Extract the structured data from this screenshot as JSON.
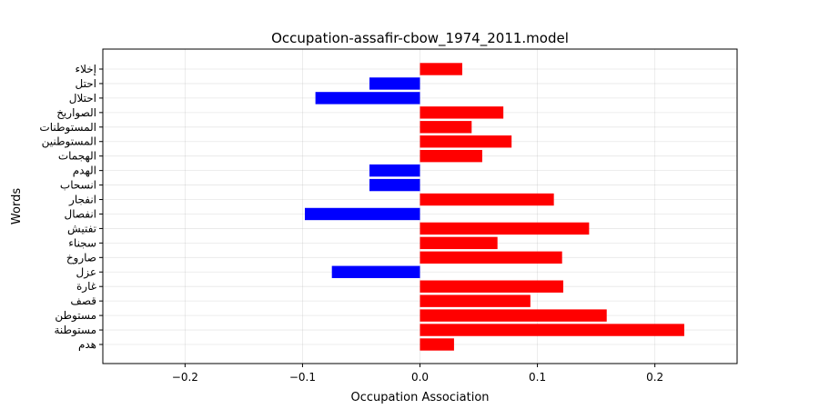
{
  "chart_data": {
    "type": "bar",
    "orientation": "horizontal",
    "title": "Occupation-assafir-cbow_1974_2011.model",
    "xlabel": "Occupation Association",
    "ylabel": "Words",
    "xlim": [
      -0.27,
      0.27
    ],
    "xticks": [
      -0.2,
      -0.1,
      0.0,
      0.1,
      0.2
    ],
    "xtick_labels": [
      "−0.2",
      "−0.1",
      "0.0",
      "0.1",
      "0.2"
    ],
    "grid": true,
    "colors": {
      "positive": "#ff0000",
      "negative": "#0000ff"
    },
    "categories": [
      "إخلاء",
      "احتل",
      "احتلال",
      "الصواريخ",
      "المستوطنات",
      "المستوطنين",
      "الهجمات",
      "الهدم",
      "انسحاب",
      "انفجار",
      "انفصال",
      "تفتيش",
      "سجناء",
      "صاروخ",
      "عزل",
      "غارة",
      "قصف",
      "مستوطن",
      "مستوطنة",
      "هدم"
    ],
    "values": [
      0.036,
      -0.043,
      -0.089,
      0.071,
      0.044,
      0.078,
      0.053,
      -0.043,
      -0.043,
      0.114,
      -0.098,
      0.144,
      0.066,
      0.121,
      -0.075,
      0.122,
      0.094,
      0.159,
      0.225,
      0.029
    ]
  }
}
